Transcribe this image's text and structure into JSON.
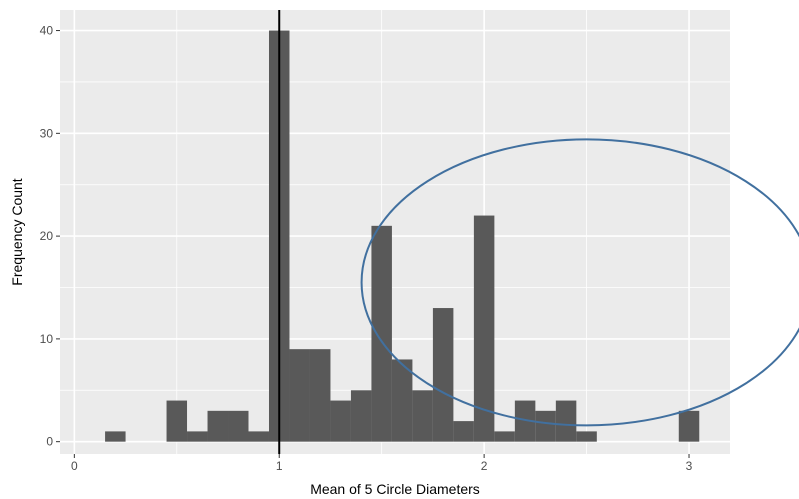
{
  "chart_data": {
    "type": "bar",
    "subtype": "histogram",
    "bin_width": 0.1,
    "bins": [
      {
        "x0": 0.15,
        "x1": 0.25,
        "count": 1
      },
      {
        "x0": 0.45,
        "x1": 0.55,
        "count": 4
      },
      {
        "x0": 0.55,
        "x1": 0.65,
        "count": 1
      },
      {
        "x0": 0.65,
        "x1": 0.75,
        "count": 3
      },
      {
        "x0": 0.75,
        "x1": 0.85,
        "count": 3
      },
      {
        "x0": 0.85,
        "x1": 0.95,
        "count": 1
      },
      {
        "x0": 0.95,
        "x1": 1.05,
        "count": 40
      },
      {
        "x0": 1.05,
        "x1": 1.15,
        "count": 9
      },
      {
        "x0": 1.15,
        "x1": 1.25,
        "count": 9
      },
      {
        "x0": 1.25,
        "x1": 1.35,
        "count": 4
      },
      {
        "x0": 1.35,
        "x1": 1.45,
        "count": 5
      },
      {
        "x0": 1.45,
        "x1": 1.55,
        "count": 21
      },
      {
        "x0": 1.55,
        "x1": 1.65,
        "count": 8
      },
      {
        "x0": 1.65,
        "x1": 1.75,
        "count": 5
      },
      {
        "x0": 1.75,
        "x1": 1.85,
        "count": 13
      },
      {
        "x0": 1.85,
        "x1": 1.95,
        "count": 2
      },
      {
        "x0": 1.95,
        "x1": 2.05,
        "count": 22
      },
      {
        "x0": 2.05,
        "x1": 2.15,
        "count": 1
      },
      {
        "x0": 2.15,
        "x1": 2.25,
        "count": 4
      },
      {
        "x0": 2.25,
        "x1": 2.35,
        "count": 3
      },
      {
        "x0": 2.35,
        "x1": 2.45,
        "count": 4
      },
      {
        "x0": 2.45,
        "x1": 2.55,
        "count": 1
      },
      {
        "x0": 2.95,
        "x1": 3.05,
        "count": 3
      }
    ],
    "title": "",
    "xlabel": "Mean of 5 Circle Diameters",
    "ylabel": "Frequency Count",
    "xlim": [
      -0.07,
      3.2
    ],
    "ylim": [
      -1.2,
      42
    ],
    "x_ticks": [
      0,
      1,
      2,
      3
    ],
    "y_ticks": [
      0,
      10,
      20,
      30,
      40
    ],
    "x_tick_labels": [
      "0",
      "1",
      "2",
      "3"
    ],
    "y_tick_labels": [
      "0",
      "10",
      "20",
      "30",
      "40"
    ],
    "reference_line": {
      "x": 1,
      "color": "#000000"
    },
    "annotation": {
      "shape": "ellipse",
      "center_x": 2.5,
      "center_y": 15.5,
      "color": "#41709f"
    },
    "grid": true,
    "panel_background": "#ebebeb",
    "bar_color": "#595959"
  }
}
